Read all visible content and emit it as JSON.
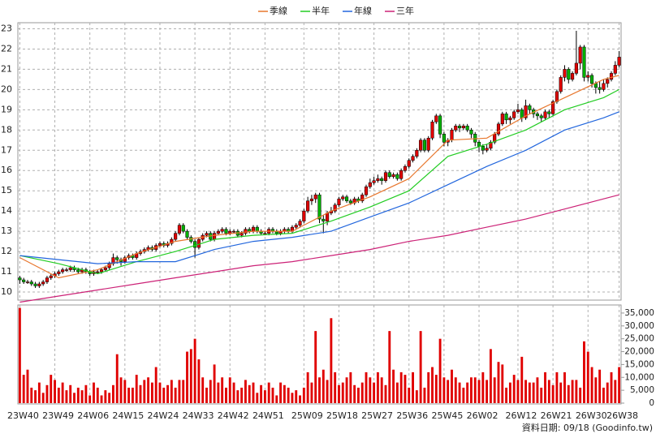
{
  "chart_data": {
    "type": "candlestick",
    "footer": "資料日期: 09/18 (Goodinfo.tw)",
    "up_color": "#e00000",
    "down_color": "#00b000",
    "grid": true,
    "ylim": [
      9.6,
      23.3
    ],
    "yticks": [
      10,
      11,
      12,
      13,
      14,
      15,
      16,
      17,
      18,
      19,
      20,
      21,
      22,
      23
    ],
    "y2lim": [
      0,
      37500
    ],
    "y2ticks": [
      0,
      {
        "value": 5000,
        "label": "5,000"
      },
      {
        "value": 10000,
        "label": "10,000"
      },
      {
        "value": 15000,
        "label": "15,000"
      },
      {
        "value": 20000,
        "label": "20,000"
      },
      {
        "value": 25000,
        "label": "25,000"
      },
      {
        "value": 30000,
        "label": "30,000"
      },
      {
        "value": 35000,
        "label": "35,000"
      }
    ],
    "xticks": [
      {
        "value": 0,
        "label": "23W40"
      },
      {
        "value": 9,
        "label": "23W49"
      },
      {
        "value": 18,
        "label": "24W06"
      },
      {
        "value": 27,
        "label": "24W15"
      },
      {
        "value": 36,
        "label": "24W24"
      },
      {
        "value": 45,
        "label": "24W33"
      },
      {
        "value": 54,
        "label": "24W42"
      },
      {
        "value": 63,
        "label": "24W51"
      },
      {
        "value": 73,
        "label": "25W09"
      },
      {
        "value": 82,
        "label": "25W18"
      },
      {
        "value": 91,
        "label": "25W27"
      },
      {
        "value": 100,
        "label": "25W36"
      },
      {
        "value": 109,
        "label": "25W45"
      },
      {
        "value": 118,
        "label": "26W02"
      },
      {
        "value": 128,
        "label": "26W12"
      },
      {
        "value": 137,
        "label": "26W21"
      },
      {
        "value": 146,
        "label": "26W30"
      },
      {
        "value": 154,
        "label": "26W38"
      }
    ],
    "series": [
      {
        "name": "季線",
        "color": "#e8772e",
        "x": [
          0,
          10,
          20,
          30,
          40,
          50,
          60,
          70,
          80,
          90,
          100,
          110,
          120,
          130,
          140,
          150,
          154
        ],
        "values": [
          11.7,
          10.7,
          11.1,
          11.9,
          12.5,
          12.8,
          13.0,
          13.0,
          14.0,
          14.7,
          15.6,
          17.5,
          17.6,
          18.7,
          19.6,
          20.5,
          20.7
        ]
      },
      {
        "name": "半年",
        "color": "#22cc22",
        "x": [
          0,
          10,
          20,
          30,
          40,
          50,
          60,
          70,
          80,
          90,
          100,
          110,
          120,
          130,
          140,
          150,
          154
        ],
        "values": [
          11.8,
          11.4,
          10.9,
          11.5,
          12.0,
          12.6,
          12.8,
          12.9,
          13.5,
          14.2,
          15.0,
          16.7,
          17.3,
          18.0,
          19.0,
          19.6,
          20.0
        ]
      },
      {
        "name": "年線",
        "color": "#2266dd",
        "x": [
          0,
          10,
          20,
          30,
          40,
          50,
          60,
          70,
          80,
          90,
          100,
          110,
          120,
          130,
          140,
          150,
          154
        ],
        "values": [
          11.8,
          11.6,
          11.4,
          11.5,
          11.5,
          12.1,
          12.5,
          12.7,
          13.0,
          13.7,
          14.4,
          15.3,
          16.2,
          17.0,
          18.0,
          18.6,
          18.9
        ]
      },
      {
        "name": "三年",
        "color": "#cc2277",
        "x": [
          0,
          10,
          20,
          30,
          40,
          50,
          60,
          70,
          80,
          90,
          100,
          110,
          120,
          130,
          140,
          150,
          154
        ],
        "values": [
          9.5,
          9.8,
          10.1,
          10.4,
          10.7,
          11.0,
          11.3,
          11.5,
          11.8,
          12.1,
          12.5,
          12.8,
          13.2,
          13.6,
          14.1,
          14.6,
          14.8
        ]
      }
    ],
    "ohlc": [
      [
        10.7,
        10.8,
        10.4,
        10.6
      ],
      [
        10.6,
        10.7,
        10.4,
        10.5
      ],
      [
        10.5,
        10.6,
        10.4,
        10.5
      ],
      [
        10.5,
        10.6,
        10.3,
        10.4
      ],
      [
        10.4,
        10.5,
        10.2,
        10.3
      ],
      [
        10.3,
        10.5,
        10.2,
        10.4
      ],
      [
        10.4,
        10.6,
        10.3,
        10.5
      ],
      [
        10.5,
        10.8,
        10.4,
        10.7
      ],
      [
        10.7,
        10.9,
        10.6,
        10.8
      ],
      [
        10.8,
        11.0,
        10.7,
        10.9
      ],
      [
        10.9,
        11.1,
        10.8,
        11.0
      ],
      [
        11.0,
        11.2,
        10.9,
        11.1
      ],
      [
        11.1,
        11.2,
        11.0,
        11.1
      ],
      [
        11.1,
        11.3,
        11.0,
        11.2
      ],
      [
        11.2,
        11.3,
        11.0,
        11.1
      ],
      [
        11.1,
        11.2,
        10.9,
        11.0
      ],
      [
        11.0,
        11.2,
        10.9,
        11.1
      ],
      [
        11.1,
        11.2,
        10.9,
        11.0
      ],
      [
        11.0,
        11.1,
        10.8,
        10.9
      ],
      [
        10.9,
        11.1,
        10.8,
        11.0
      ],
      [
        11.0,
        11.1,
        10.9,
        11.0
      ],
      [
        11.0,
        11.2,
        10.9,
        11.1
      ],
      [
        11.1,
        11.3,
        11.0,
        11.2
      ],
      [
        11.2,
        11.5,
        11.1,
        11.4
      ],
      [
        11.4,
        11.9,
        11.3,
        11.7
      ],
      [
        11.7,
        11.8,
        11.4,
        11.6
      ],
      [
        11.6,
        11.7,
        11.3,
        11.5
      ],
      [
        11.5,
        11.8,
        11.4,
        11.7
      ],
      [
        11.7,
        11.9,
        11.6,
        11.8
      ],
      [
        11.8,
        11.9,
        11.6,
        11.7
      ],
      [
        11.7,
        12.0,
        11.6,
        11.9
      ],
      [
        11.9,
        12.1,
        11.8,
        12.0
      ],
      [
        12.0,
        12.2,
        11.9,
        12.1
      ],
      [
        12.1,
        12.3,
        12.0,
        12.2
      ],
      [
        12.2,
        12.3,
        12.0,
        12.1
      ],
      [
        12.1,
        12.4,
        12.0,
        12.3
      ],
      [
        12.3,
        12.5,
        12.2,
        12.4
      ],
      [
        12.4,
        12.5,
        12.2,
        12.3
      ],
      [
        12.3,
        12.5,
        12.2,
        12.4
      ],
      [
        12.4,
        12.7,
        12.3,
        12.6
      ],
      [
        12.6,
        13.0,
        12.5,
        12.9
      ],
      [
        12.9,
        13.4,
        12.8,
        13.3
      ],
      [
        13.3,
        13.4,
        12.9,
        13.0
      ],
      [
        13.0,
        13.1,
        12.6,
        12.7
      ],
      [
        12.7,
        12.8,
        12.4,
        12.5
      ],
      [
        12.5,
        12.6,
        11.7,
        12.2
      ],
      [
        12.2,
        12.7,
        12.1,
        12.6
      ],
      [
        12.6,
        12.9,
        12.5,
        12.8
      ],
      [
        12.8,
        13.0,
        12.7,
        12.9
      ],
      [
        12.9,
        13.0,
        12.5,
        12.6
      ],
      [
        12.6,
        13.0,
        12.5,
        12.9
      ],
      [
        12.9,
        13.1,
        12.8,
        13.0
      ],
      [
        13.0,
        13.2,
        12.9,
        13.1
      ],
      [
        13.1,
        13.2,
        12.8,
        12.9
      ],
      [
        12.9,
        13.1,
        12.8,
        13.0
      ],
      [
        13.0,
        13.1,
        12.9,
        13.0
      ],
      [
        13.0,
        13.1,
        12.7,
        12.8
      ],
      [
        12.8,
        13.0,
        12.7,
        12.9
      ],
      [
        12.9,
        13.2,
        12.8,
        13.1
      ],
      [
        13.1,
        13.2,
        12.9,
        13.0
      ],
      [
        13.0,
        13.3,
        12.9,
        13.2
      ],
      [
        13.2,
        13.3,
        12.9,
        13.0
      ],
      [
        13.0,
        13.1,
        12.8,
        12.9
      ],
      [
        12.9,
        13.0,
        12.8,
        12.9
      ],
      [
        12.9,
        13.2,
        12.8,
        13.1
      ],
      [
        13.1,
        13.2,
        12.9,
        13.0
      ],
      [
        13.0,
        13.1,
        12.8,
        12.9
      ],
      [
        12.9,
        13.1,
        12.8,
        13.0
      ],
      [
        13.0,
        13.2,
        12.9,
        13.1
      ],
      [
        13.1,
        13.2,
        12.9,
        13.0
      ],
      [
        13.0,
        13.3,
        12.9,
        13.2
      ],
      [
        13.2,
        13.4,
        13.1,
        13.3
      ],
      [
        13.3,
        13.6,
        13.2,
        13.5
      ],
      [
        13.5,
        14.1,
        13.4,
        14.0
      ],
      [
        14.0,
        14.7,
        13.9,
        14.5
      ],
      [
        14.5,
        14.8,
        14.3,
        14.6
      ],
      [
        14.6,
        14.9,
        14.4,
        14.8
      ],
      [
        14.8,
        14.9,
        13.4,
        13.6
      ],
      [
        13.6,
        13.8,
        12.9,
        13.5
      ],
      [
        13.5,
        14.0,
        13.3,
        13.9
      ],
      [
        13.9,
        14.2,
        13.8,
        14.0
      ],
      [
        14.0,
        14.4,
        13.9,
        14.3
      ],
      [
        14.3,
        14.7,
        14.2,
        14.6
      ],
      [
        14.6,
        14.8,
        14.5,
        14.7
      ],
      [
        14.7,
        14.8,
        14.4,
        14.5
      ],
      [
        14.5,
        14.6,
        14.3,
        14.4
      ],
      [
        14.4,
        14.7,
        14.3,
        14.6
      ],
      [
        14.6,
        14.7,
        14.4,
        14.5
      ],
      [
        14.5,
        14.9,
        14.4,
        14.8
      ],
      [
        14.8,
        15.3,
        14.7,
        15.2
      ],
      [
        15.2,
        15.6,
        15.1,
        15.4
      ],
      [
        15.4,
        15.7,
        15.3,
        15.5
      ],
      [
        15.5,
        15.8,
        15.4,
        15.6
      ],
      [
        15.6,
        15.7,
        15.3,
        15.5
      ],
      [
        15.5,
        16.0,
        15.4,
        15.9
      ],
      [
        15.9,
        16.0,
        15.6,
        15.7
      ],
      [
        15.7,
        15.9,
        15.6,
        15.8
      ],
      [
        15.8,
        15.9,
        15.5,
        15.6
      ],
      [
        15.6,
        16.1,
        15.5,
        16.0
      ],
      [
        16.0,
        16.3,
        15.9,
        16.2
      ],
      [
        16.2,
        16.6,
        16.1,
        16.5
      ],
      [
        16.5,
        16.8,
        16.4,
        16.7
      ],
      [
        16.7,
        17.1,
        16.6,
        17.0
      ],
      [
        17.0,
        17.6,
        16.9,
        17.5
      ],
      [
        17.5,
        17.6,
        16.9,
        17.0
      ],
      [
        17.0,
        17.7,
        16.9,
        17.6
      ],
      [
        17.6,
        18.5,
        17.5,
        18.4
      ],
      [
        18.4,
        18.8,
        18.3,
        18.7
      ],
      [
        18.7,
        18.8,
        17.6,
        17.8
      ],
      [
        17.8,
        17.9,
        17.2,
        17.4
      ],
      [
        17.4,
        17.6,
        17.2,
        17.5
      ],
      [
        17.5,
        18.1,
        17.4,
        18.0
      ],
      [
        18.0,
        18.3,
        17.9,
        18.2
      ],
      [
        18.2,
        18.3,
        17.9,
        18.1
      ],
      [
        18.1,
        18.3,
        18.0,
        18.2
      ],
      [
        18.2,
        18.3,
        17.9,
        18.0
      ],
      [
        18.0,
        18.1,
        17.6,
        17.8
      ],
      [
        17.8,
        17.9,
        17.2,
        17.4
      ],
      [
        17.4,
        17.5,
        16.9,
        17.2
      ],
      [
        17.2,
        17.3,
        16.8,
        17.0
      ],
      [
        17.0,
        17.3,
        16.9,
        17.1
      ],
      [
        17.1,
        17.5,
        17.0,
        17.4
      ],
      [
        17.4,
        17.9,
        17.3,
        17.8
      ],
      [
        17.8,
        18.4,
        17.7,
        18.3
      ],
      [
        18.3,
        18.9,
        18.2,
        18.8
      ],
      [
        18.8,
        18.9,
        18.3,
        18.5
      ],
      [
        18.5,
        18.7,
        18.3,
        18.6
      ],
      [
        18.6,
        19.0,
        18.5,
        18.9
      ],
      [
        18.9,
        19.3,
        18.8,
        19.0
      ],
      [
        19.0,
        19.1,
        18.4,
        18.6
      ],
      [
        18.6,
        19.5,
        18.5,
        19.2
      ],
      [
        19.2,
        19.3,
        18.8,
        19.0
      ],
      [
        19.0,
        19.1,
        18.6,
        18.8
      ],
      [
        18.8,
        18.9,
        18.5,
        18.7
      ],
      [
        18.7,
        18.8,
        18.4,
        18.6
      ],
      [
        18.6,
        19.0,
        18.5,
        18.9
      ],
      [
        18.9,
        19.0,
        18.6,
        18.8
      ],
      [
        18.8,
        19.5,
        18.7,
        19.4
      ],
      [
        19.4,
        20.0,
        19.3,
        19.9
      ],
      [
        19.9,
        20.7,
        19.8,
        20.6
      ],
      [
        20.6,
        21.2,
        20.4,
        21.0
      ],
      [
        21.0,
        21.1,
        20.3,
        20.5
      ],
      [
        20.5,
        20.9,
        20.4,
        20.8
      ],
      [
        20.8,
        22.9,
        20.7,
        21.3
      ],
      [
        21.3,
        22.2,
        21.0,
        22.1
      ],
      [
        22.1,
        22.2,
        20.4,
        20.6
      ],
      [
        20.6,
        20.9,
        20.4,
        20.7
      ],
      [
        20.7,
        20.8,
        20.1,
        20.3
      ],
      [
        20.3,
        20.4,
        19.8,
        20.1
      ],
      [
        20.1,
        20.4,
        19.8,
        20.0
      ],
      [
        20.0,
        20.5,
        19.9,
        20.3
      ],
      [
        20.3,
        20.6,
        20.1,
        20.5
      ],
      [
        20.5,
        20.9,
        20.4,
        20.8
      ],
      [
        20.8,
        21.4,
        20.7,
        21.2
      ],
      [
        21.2,
        21.9,
        21.1,
        21.6
      ]
    ],
    "volume": {
      "color": "#e00000",
      "values": [
        37000,
        11000,
        13000,
        6000,
        5000,
        8000,
        4000,
        7000,
        11000,
        9000,
        6000,
        8000,
        5000,
        7000,
        4000,
        6000,
        5000,
        7000,
        3000,
        8000,
        6000,
        3000,
        5000,
        4000,
        7000,
        19000,
        10000,
        9000,
        6000,
        6000,
        11000,
        7000,
        9000,
        10000,
        8000,
        14000,
        8000,
        6000,
        7000,
        9000,
        6000,
        9000,
        9000,
        20000,
        21000,
        25000,
        17000,
        10000,
        6000,
        9000,
        15000,
        8000,
        10000,
        6000,
        10000,
        8000,
        5000,
        6000,
        9000,
        7000,
        8000,
        4000,
        7000,
        5000,
        8000,
        6000,
        3000,
        8000,
        7000,
        6000,
        4000,
        5000,
        3000,
        6000,
        12000,
        8000,
        28000,
        10000,
        13000,
        9000,
        33000,
        12000,
        7000,
        8000,
        10000,
        12000,
        7000,
        6000,
        8000,
        12000,
        10000,
        8000,
        12000,
        10000,
        7000,
        28000,
        13000,
        8000,
        12000,
        11000,
        6000,
        12000,
        5000,
        28000,
        6000,
        12000,
        14000,
        11000,
        25000,
        10000,
        9000,
        13000,
        10000,
        8000,
        6000,
        8000,
        10000,
        10000,
        9000,
        12000,
        9000,
        21000,
        10000,
        16000,
        15000,
        6000,
        8000,
        11000,
        9000,
        18000,
        9000,
        8000,
        8000,
        10000,
        6000,
        12000,
        9000,
        7000,
        12000,
        8000,
        12000,
        7000,
        9000,
        9000,
        6000,
        24000,
        20000,
        14000,
        10000,
        13000,
        6000,
        8000,
        12000,
        9000,
        14000
      ]
    }
  }
}
